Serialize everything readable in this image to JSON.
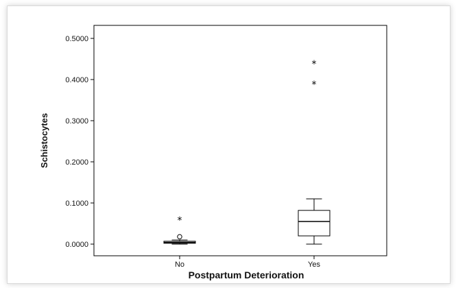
{
  "chart_data": {
    "type": "boxplot",
    "title": "",
    "xlabel": "Postpartum Deterioration",
    "ylabel": "Schistocytes",
    "ylim": [
      -0.0,
      0.5
    ],
    "y_ticks": [
      0.0,
      0.1,
      0.2,
      0.3,
      0.4,
      0.5
    ],
    "y_tick_labels": [
      "0.0000",
      "0.1000",
      "0.2000",
      "0.3000",
      "0.4000",
      "0.5000"
    ],
    "categories": [
      "No",
      "Yes"
    ],
    "boxes": [
      {
        "category": "No",
        "whisker_low": 0.0,
        "q1": 0.002,
        "median": 0.004,
        "q3": 0.007,
        "whisker_high": 0.01,
        "outliers": [
          0.018
        ],
        "extremes": [
          0.06
        ]
      },
      {
        "category": "Yes",
        "whisker_low": 0.0,
        "q1": 0.02,
        "median": 0.055,
        "q3": 0.082,
        "whisker_high": 0.11,
        "outliers": [],
        "extremes": [
          0.39,
          0.44
        ]
      }
    ],
    "legend": "none",
    "grid": false
  }
}
